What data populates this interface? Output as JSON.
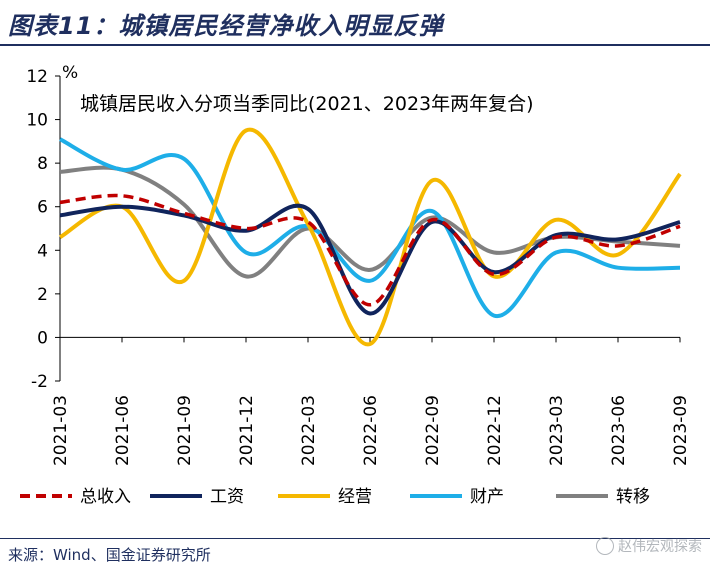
{
  "header": {
    "title": "图表11：城镇居民经营净收入明显反弹"
  },
  "footer": {
    "source": "来源：Wind、国金证券研究所",
    "watermark": "赵伟宏观探索"
  },
  "chart_data": {
    "type": "line",
    "title": "城镇居民收入分项当季同比(2021、2023年两年复合)",
    "ylabel": "%",
    "xlabel": "",
    "ylim": [
      -2,
      12
    ],
    "yticks": [
      -2,
      0,
      2,
      4,
      6,
      8,
      10,
      12
    ],
    "grid": false,
    "legend_position": "bottom",
    "categories": [
      "2021-03",
      "2021-06",
      "2021-09",
      "2021-12",
      "2022-03",
      "2022-06",
      "2022-09",
      "2022-12",
      "2023-03",
      "2023-06",
      "2023-09"
    ],
    "series": [
      {
        "name": "总收入",
        "color": "#c00000",
        "dashed": true,
        "values": [
          6.2,
          6.5,
          5.7,
          5.0,
          5.3,
          1.5,
          5.4,
          2.9,
          4.6,
          4.2,
          5.1
        ]
      },
      {
        "name": "工资",
        "color": "#10245c",
        "dashed": false,
        "values": [
          5.6,
          6.0,
          5.6,
          4.9,
          5.9,
          1.1,
          5.3,
          3.0,
          4.7,
          4.5,
          5.3
        ]
      },
      {
        "name": "经营",
        "color": "#f5b800",
        "dashed": false,
        "values": [
          4.6,
          6.0,
          2.6,
          9.5,
          5.2,
          -0.3,
          7.2,
          2.8,
          5.4,
          3.8,
          7.5
        ]
      },
      {
        "name": "财产",
        "color": "#1eaee8",
        "dashed": false,
        "values": [
          9.1,
          7.7,
          8.2,
          3.9,
          5.1,
          2.6,
          5.8,
          1.0,
          3.9,
          3.2,
          3.2
        ]
      },
      {
        "name": "转移",
        "color": "#808080",
        "dashed": false,
        "values": [
          7.6,
          7.7,
          6.1,
          2.8,
          5.0,
          3.1,
          5.5,
          3.9,
          4.6,
          4.4,
          4.2
        ]
      }
    ]
  }
}
